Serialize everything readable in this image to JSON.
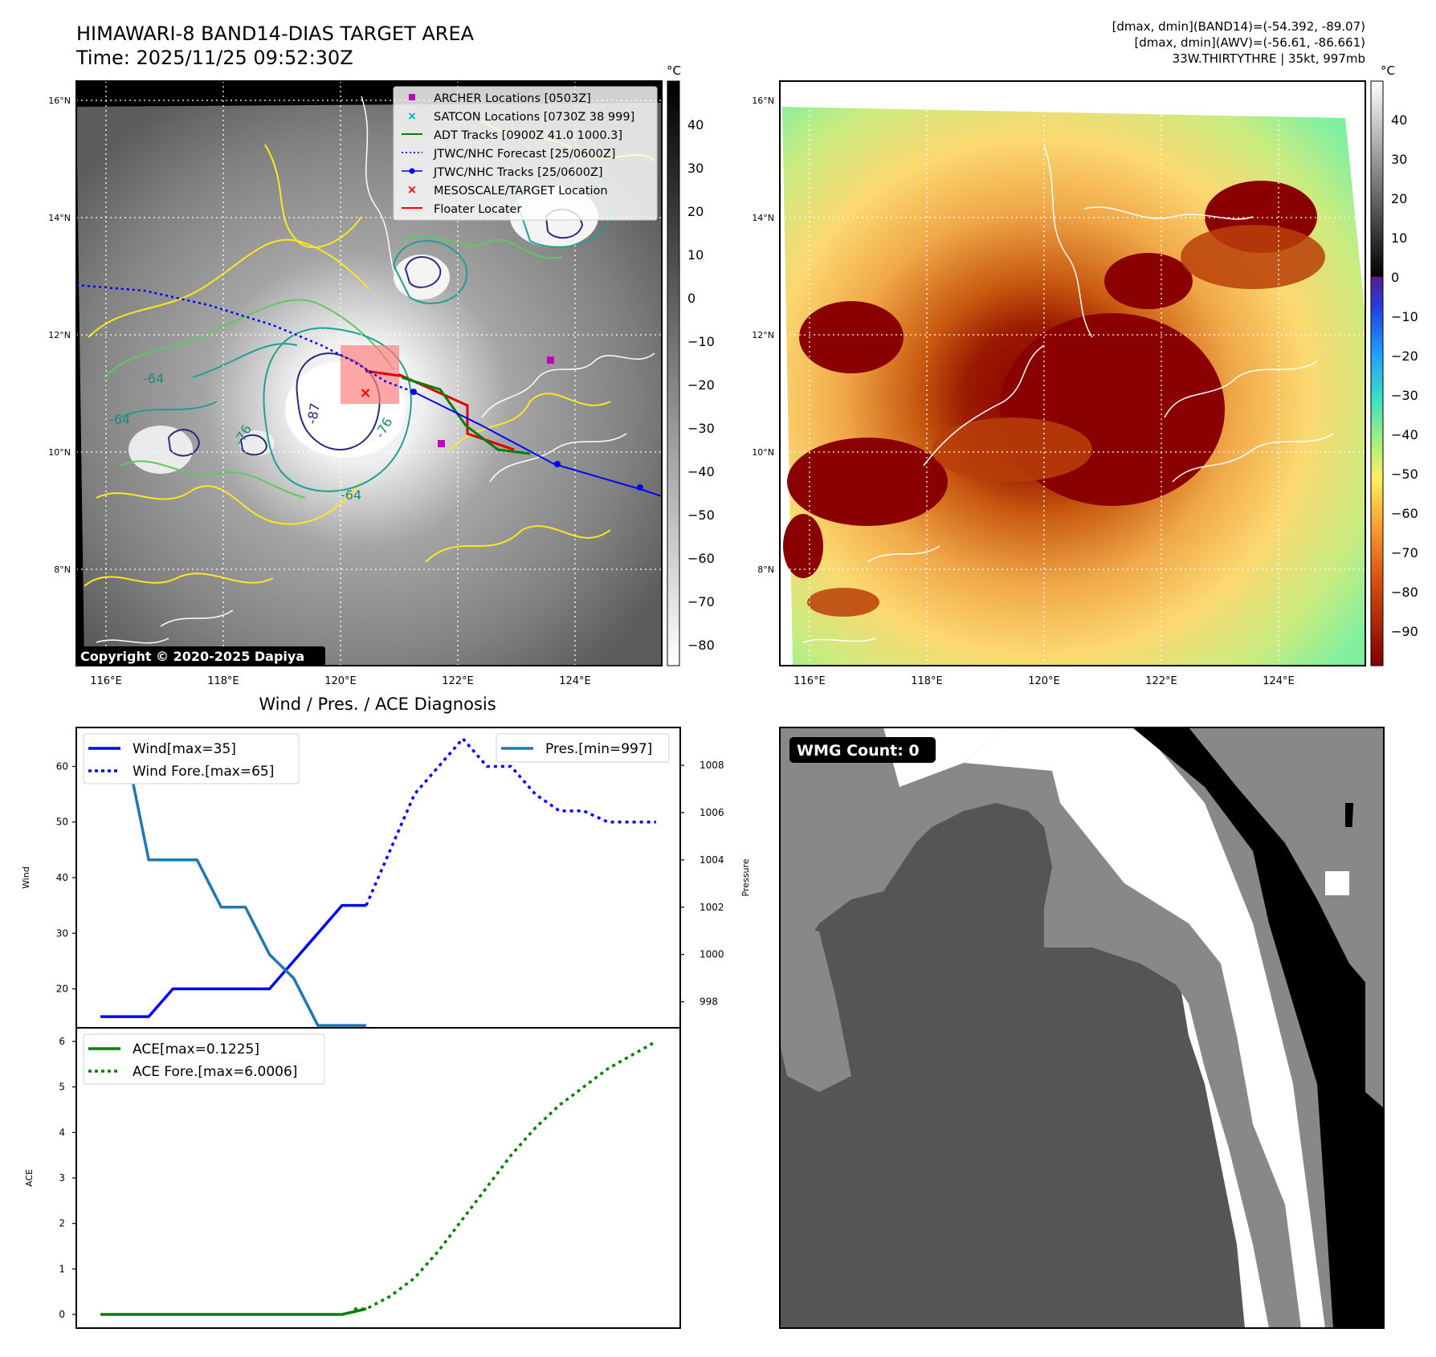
{
  "header": {
    "title": "HIMAWARI-8 BAND14-DIAS TARGET AREA",
    "time": "Time: 2025/11/25 09:52:30Z",
    "stats_line1": "[dmax, dmin](BAND14)=(-54.392, -89.07)",
    "stats_line2": "[dmax, dmin](AWV)=(-56.61, -86.661)",
    "storm_info": "33W.THIRTYTHRE | 35kt, 997mb"
  },
  "map_left": {
    "lon_ticks": [
      "116°E",
      "118°E",
      "120°E",
      "122°E",
      "124°E"
    ],
    "lat_ticks": [
      "16°N",
      "14°N",
      "12°N",
      "10°N",
      "8°N"
    ],
    "contour_labels": [
      "-64",
      "-64",
      "-76",
      "-76",
      "-87",
      "-64"
    ],
    "copyright": "Copyright © 2020-2025 Dapiya",
    "legend": [
      {
        "label": "ARCHER Locations [0503Z]",
        "color": "#c000c0",
        "marker": "square"
      },
      {
        "label": "SATCON Locations [0730Z 38 999]",
        "color": "#00b0b0",
        "marker": "x"
      },
      {
        "label": "ADT Tracks [0900Z 41.0 1000.3]",
        "color": "#008000",
        "marker": "line"
      },
      {
        "label": "JTWC/NHC Forecast [25/0600Z]",
        "color": "#0000ff",
        "marker": "dotted"
      },
      {
        "label": "JTWC/NHC Tracks [25/0600Z]",
        "color": "#0000ff",
        "marker": "line-dot"
      },
      {
        "label": "MESOSCALE/TARGET Location",
        "color": "#ff0000",
        "marker": "x"
      },
      {
        "label": "Floater Locater",
        "color": "#ff0000",
        "marker": "line"
      }
    ],
    "colorbar": {
      "unit": "°C",
      "ticks": [
        "40",
        "30",
        "20",
        "10",
        "0",
        "−10",
        "−20",
        "−30",
        "−40",
        "−50",
        "−60",
        "−70",
        "−80"
      ]
    }
  },
  "map_right": {
    "lon_ticks": [
      "116°E",
      "118°E",
      "120°E",
      "122°E",
      "124°E"
    ],
    "lat_ticks": [
      "16°N",
      "14°N",
      "12°N",
      "10°N",
      "8°N"
    ],
    "colorbar": {
      "unit": "°C",
      "ticks": [
        "40",
        "30",
        "20",
        "10",
        "0",
        "−10",
        "−20",
        "−30",
        "−40",
        "−50",
        "−60",
        "−70",
        "−80",
        "−90"
      ]
    }
  },
  "wmg": {
    "label": "WMG Count: 0"
  },
  "chart_data": [
    {
      "type": "line",
      "title": "Wind / Pres. / ACE Diagnosis",
      "ylabel": "Wind",
      "ylabel_right": "Pressure",
      "xlim": [
        0,
        25
      ],
      "ylim": [
        13,
        67
      ],
      "yticks": [
        20,
        30,
        40,
        50,
        60
      ],
      "ylim_right": [
        996.9,
        1009.6
      ],
      "yticks_right": [
        998,
        1000,
        1002,
        1004,
        1006,
        1008
      ],
      "series": [
        {
          "name": "Wind[max=35]",
          "color": "#0000ff",
          "style": "solid",
          "axis": "left",
          "x": [
            1,
            3,
            4,
            5,
            6,
            7,
            8,
            9,
            10,
            11,
            12
          ],
          "y": [
            15,
            15,
            20,
            20,
            20,
            20,
            20,
            25,
            30,
            35,
            35
          ]
        },
        {
          "name": "Wind Fore.[max=65]",
          "color": "#0000ff",
          "style": "dotted",
          "axis": "left",
          "x": [
            12,
            13,
            14,
            15,
            16,
            17,
            18,
            19,
            20,
            21,
            22,
            23,
            24
          ],
          "y": [
            35,
            45,
            55,
            60,
            65,
            60,
            60,
            55,
            52,
            52,
            50,
            50,
            50
          ]
        },
        {
          "name": "Pres.[min=997]",
          "color": "#1f77b4",
          "style": "solid",
          "axis": "right",
          "x": [
            1,
            2,
            3,
            4,
            5,
            6,
            7,
            8,
            9,
            10,
            11,
            12
          ],
          "y": [
            1009,
            1009,
            1004,
            1004,
            1004,
            1002,
            1002,
            1000,
            999,
            997,
            997,
            997
          ]
        }
      ]
    },
    {
      "type": "line",
      "ylabel": "ACE",
      "xlim": [
        0,
        25
      ],
      "ylim": [
        -0.3,
        6.3
      ],
      "yticks": [
        0,
        1,
        2,
        3,
        4,
        5,
        6
      ],
      "series": [
        {
          "name": "ACE[max=0.1225]",
          "color": "#008000",
          "style": "solid",
          "x": [
            1,
            10,
            11,
            12
          ],
          "y": [
            0,
            0,
            0,
            0.1225
          ]
        },
        {
          "name": "ACE Fore.[max=6.0006]",
          "color": "#008000",
          "style": "dotted",
          "x": [
            11.5,
            12,
            13,
            14,
            15,
            16,
            17,
            18,
            19,
            20,
            21,
            22,
            23,
            24
          ],
          "y": [
            0.1225,
            0.1225,
            0.4,
            0.8,
            1.4,
            2.1,
            2.8,
            3.5,
            4.1,
            4.6,
            5.0,
            5.4,
            5.7,
            6.0006
          ]
        }
      ]
    }
  ]
}
